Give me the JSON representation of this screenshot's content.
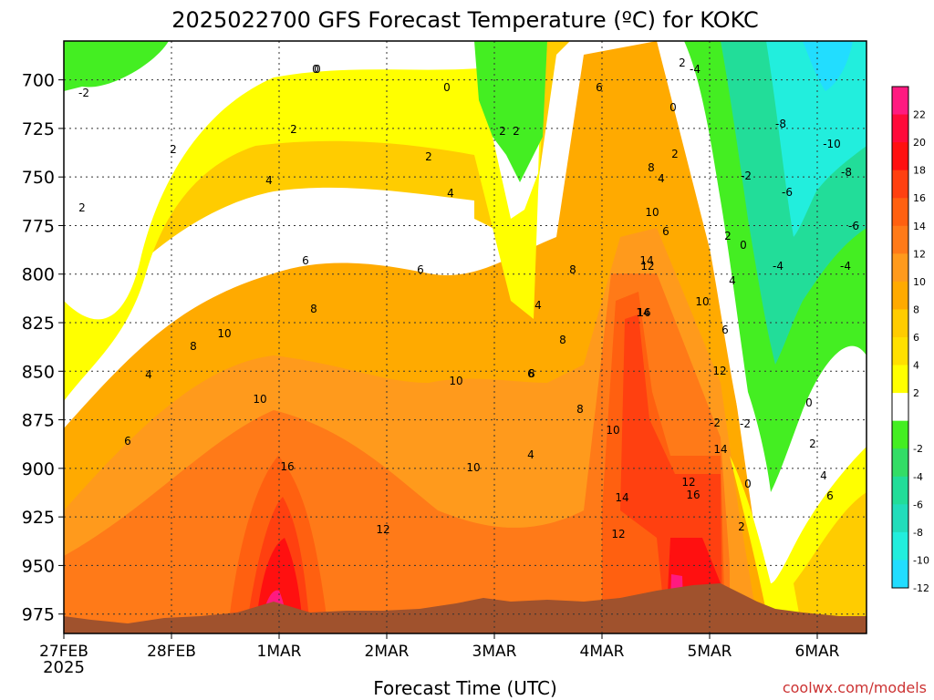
{
  "chart_data": {
    "type": "heatmap",
    "title": "2025022700 GFS Forecast Temperature (ºC) for KOKC",
    "xlabel": "Forecast Time (UTC)",
    "ylabel": "",
    "credit": "coolwx.com/models",
    "x_ticks": [
      "27FEB",
      "28FEB",
      "1MAR",
      "2MAR",
      "3MAR",
      "4MAR",
      "5MAR",
      "6MAR"
    ],
    "x_year": "2025",
    "y_ticks": [
      "700",
      "725",
      "750",
      "775",
      "800",
      "825",
      "850",
      "875",
      "900",
      "925",
      "950",
      "975"
    ],
    "y_values": [
      700,
      725,
      750,
      775,
      800,
      825,
      850,
      875,
      900,
      925,
      950,
      975
    ],
    "ylim": [
      680,
      985
    ],
    "colorbar": {
      "labels": [
        "22",
        "20",
        "18",
        "16",
        "14",
        "12",
        "10",
        "8",
        "6",
        "4",
        "2",
        "",
        "-2",
        "-4",
        "-6",
        "-8",
        "-10",
        "-12"
      ],
      "colors": [
        "#ff1a80",
        "#ff0a3a",
        "#ff1010",
        "#ff4010",
        "#ff6010",
        "#ff7a18",
        "#ff9a1c",
        "#ffaa00",
        "#ffcc00",
        "#ffe000",
        "#ffff00",
        "#ffffff",
        "#44ee22",
        "#33dd66",
        "#22dd99",
        "#22ddbb",
        "#22eedd",
        "#22ddff"
      ]
    },
    "contour_labels": [
      "-2",
      "0",
      "0",
      "2",
      "2",
      "2",
      "2",
      "4",
      "4",
      "4",
      "6",
      "6",
      "6",
      "8",
      "8",
      "10",
      "10",
      "12",
      "16",
      "10",
      "10",
      "8",
      "4",
      "2",
      "0",
      "6",
      "8",
      "8",
      "10",
      "12",
      "14",
      "16",
      "14",
      "12",
      "-2",
      "2",
      "-4",
      "0",
      "2",
      "4",
      "6",
      "8",
      "10",
      "12",
      "14",
      "16",
      "-8",
      "-10",
      "-8",
      "-6",
      "-6",
      "-4",
      "-4",
      "-2",
      "0",
      "2",
      "4",
      "6",
      "2",
      "4",
      "6",
      "8",
      "10",
      "12",
      "14",
      "2",
      "0",
      "-2",
      "0",
      "2",
      "4",
      "6"
    ]
  }
}
